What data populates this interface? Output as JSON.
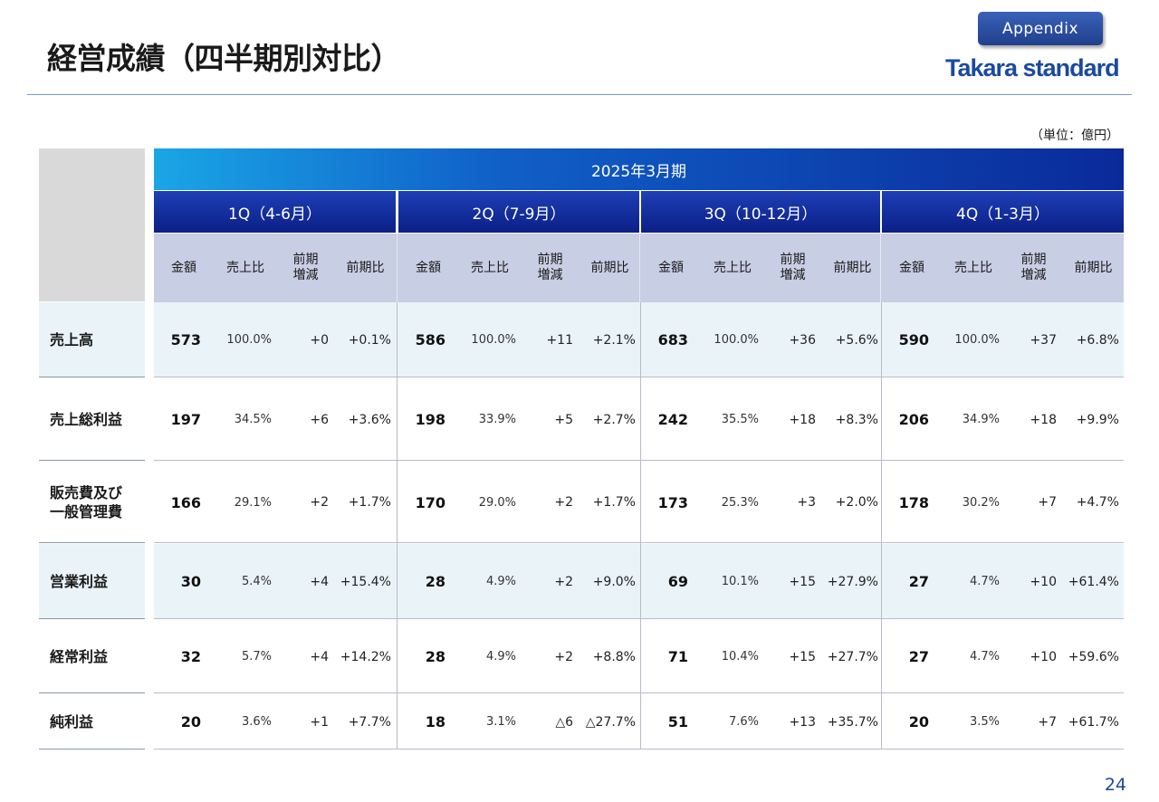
{
  "header": {
    "title": "経営成績（四半期別対比）",
    "appendix_label": "Appendix",
    "logo_text": "Takara standard",
    "unit": "（単位：億円）",
    "page_number": "24"
  },
  "table": {
    "fiscal_year": "2025年3月期",
    "quarters": [
      "1Q（4-6月）",
      "2Q（7-9月）",
      "3Q（10-12月）",
      "4Q（1-3月）"
    ],
    "column_headers": [
      "金額",
      "売上比",
      "前期\n増減",
      "前期比"
    ],
    "rows": [
      {
        "label": "売上高",
        "cells": [
          [
            "573",
            "100.0%",
            "+0",
            "+0.1%"
          ],
          [
            "586",
            "100.0%",
            "+11",
            "+2.1%"
          ],
          [
            "683",
            "100.0%",
            "+36",
            "+5.6%"
          ],
          [
            "590",
            "100.0%",
            "+37",
            "+6.8%"
          ]
        ]
      },
      {
        "label": "売上総利益",
        "cells": [
          [
            "197",
            "34.5%",
            "+6",
            "+3.6%"
          ],
          [
            "198",
            "33.9%",
            "+5",
            "+2.7%"
          ],
          [
            "242",
            "35.5%",
            "+18",
            "+8.3%"
          ],
          [
            "206",
            "34.9%",
            "+18",
            "+9.9%"
          ]
        ]
      },
      {
        "label": "販売費及び\n一般管理費",
        "cells": [
          [
            "166",
            "29.1%",
            "+2",
            "+1.7%"
          ],
          [
            "170",
            "29.0%",
            "+2",
            "+1.7%"
          ],
          [
            "173",
            "25.3%",
            "+3",
            "+2.0%"
          ],
          [
            "178",
            "30.2%",
            "+7",
            "+4.7%"
          ]
        ]
      },
      {
        "label": "営業利益",
        "cells": [
          [
            "30",
            "5.4%",
            "+4",
            "+15.4%"
          ],
          [
            "28",
            "4.9%",
            "+2",
            "+9.0%"
          ],
          [
            "69",
            "10.1%",
            "+15",
            "+27.9%"
          ],
          [
            "27",
            "4.7%",
            "+10",
            "+61.4%"
          ]
        ]
      },
      {
        "label": "経常利益",
        "cells": [
          [
            "32",
            "5.7%",
            "+4",
            "+14.2%"
          ],
          [
            "28",
            "4.9%",
            "+2",
            "+8.8%"
          ],
          [
            "71",
            "10.4%",
            "+15",
            "+27.7%"
          ],
          [
            "27",
            "4.7%",
            "+10",
            "+59.6%"
          ]
        ]
      },
      {
        "label": "純利益",
        "cells": [
          [
            "20",
            "3.6%",
            "+1",
            "+7.7%"
          ],
          [
            "18",
            "3.1%",
            "△6",
            "△27.7%"
          ],
          [
            "51",
            "7.6%",
            "+13",
            "+35.7%"
          ],
          [
            "20",
            "3.5%",
            "+7",
            "+61.7%"
          ]
        ]
      }
    ]
  },
  "colors": {
    "row_shaded": "#eaf4f8",
    "row_plain": "#ffffff",
    "accent": "#1a4aa0"
  }
}
